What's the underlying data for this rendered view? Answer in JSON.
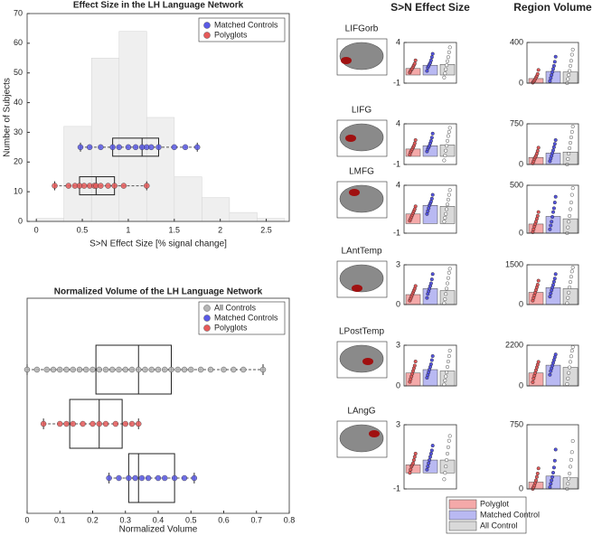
{
  "chart_data": [
    {
      "type": "histogram",
      "title": "Effect Size in the LH Language Network",
      "x_label": "S>N Effect Size [% signal change]",
      "y_label": "Number of Subjects",
      "bins": [
        0,
        0.3,
        0.6,
        0.9,
        1.2,
        1.5,
        1.8,
        2.1,
        2.4,
        2.7
      ],
      "counts": [
        1,
        32,
        55,
        64,
        35,
        15,
        8,
        3,
        1
      ],
      "color": "#efefef",
      "xlim": [
        -0.1,
        2.75
      ],
      "ylim": [
        0,
        70
      ],
      "xticks": [
        0,
        0.5,
        1,
        1.5,
        2,
        2.5
      ],
      "yticks": [
        0,
        10,
        20,
        30,
        40,
        50,
        60,
        70
      ],
      "legend": "upper right",
      "series": [
        {
          "name": "Matched Controls",
          "color": "#5a5ae6",
          "y": 25,
          "box": [
            0.48,
            0.83,
            1.15,
            1.33,
            1.75
          ],
          "points": [
            0.48,
            0.58,
            0.7,
            0.83,
            0.9,
            1.0,
            1.08,
            1.15,
            1.2,
            1.25,
            1.33,
            1.5,
            1.62,
            1.75
          ]
        },
        {
          "name": "Polyglots",
          "color": "#e65a5a",
          "y": 12,
          "box": [
            0.2,
            0.47,
            0.65,
            0.85,
            1.2
          ],
          "points": [
            0.2,
            0.35,
            0.42,
            0.47,
            0.52,
            0.58,
            0.63,
            0.65,
            0.7,
            0.78,
            0.85,
            0.95,
            1.2
          ]
        }
      ]
    },
    {
      "type": "boxplot",
      "title": "Normalized Volume of the LH Language Network",
      "x_label": "Normalized Volume",
      "xlim": [
        0,
        0.8
      ],
      "xticks": [
        0,
        0.1,
        0.2,
        0.3,
        0.4,
        0.5,
        0.6,
        0.7,
        0.8
      ],
      "legend": "upper right",
      "series": [
        {
          "name": "All Controls",
          "color": "#b4b4b4",
          "box": [
            0,
            0.21,
            0.34,
            0.44,
            0.72
          ],
          "points": [
            0,
            0.03,
            0.06,
            0.08,
            0.1,
            0.12,
            0.14,
            0.16,
            0.18,
            0.2,
            0.22,
            0.24,
            0.26,
            0.28,
            0.3,
            0.32,
            0.34,
            0.36,
            0.38,
            0.4,
            0.42,
            0.44,
            0.46,
            0.48,
            0.5,
            0.53,
            0.56,
            0.6,
            0.63,
            0.66,
            0.72
          ]
        },
        {
          "name": "Matched Controls",
          "color": "#5a5ae6",
          "box": [
            0.25,
            0.31,
            0.34,
            0.45,
            0.51
          ],
          "points": [
            0.25,
            0.28,
            0.31,
            0.33,
            0.35,
            0.37,
            0.4,
            0.42,
            0.45,
            0.48,
            0.51
          ]
        },
        {
          "name": "Polyglots",
          "color": "#e65a5a",
          "box": [
            0.05,
            0.13,
            0.22,
            0.29,
            0.34
          ],
          "points": [
            0.05,
            0.1,
            0.12,
            0.14,
            0.17,
            0.2,
            0.22,
            0.24,
            0.27,
            0.3,
            0.32,
            0.34
          ]
        }
      ]
    },
    {
      "type": "bar_grid",
      "column_titles": [
        "S>N Effect Size",
        "Region Volume"
      ],
      "legend": "lower center",
      "series": [
        {
          "name": "Polyglot",
          "color": "#f4a9a9",
          "point_color": "#e05a5a"
        },
        {
          "name": "Matched Control",
          "color": "#b9b9f2",
          "point_color": "#5555e0"
        },
        {
          "name": "All Control",
          "color": "#d9d9d9",
          "point_color": "#ffffff"
        }
      ],
      "panels": [
        {
          "region": "LIFGorb",
          "effect": {
            "ylim": [
              -1,
              4
            ],
            "yticks": [
              -1,
              4
            ],
            "values": [
              0.8,
              1.2,
              1.3
            ],
            "points": [
              [
                0.3,
                0.5,
                0.7,
                0.8,
                1.0,
                1.2,
                1.4,
                1.8
              ],
              [
                0.5,
                0.9,
                1.1,
                1.3,
                1.5,
                1.8,
                2.2,
                2.6
              ],
              [
                -0.3,
                0.2,
                0.7,
                1.2,
                1.7,
                2.2,
                2.8,
                3.4
              ]
            ]
          },
          "volume": {
            "ylim": [
              0,
              400
            ],
            "yticks": [
              0,
              400
            ],
            "values": [
              45,
              115,
              110
            ],
            "points": [
              [
                5,
                15,
                25,
                40,
                55,
                70,
                90,
                130
              ],
              [
                20,
                50,
                80,
                110,
                140,
                170,
                210,
                260
              ],
              [
                0,
                40,
                80,
                120,
                170,
                220,
                280,
                330
              ]
            ]
          }
        },
        {
          "region": "LIFG",
          "effect": {
            "ylim": [
              -1,
              4
            ],
            "yticks": [
              -1,
              4
            ],
            "values": [
              0.9,
              1.3,
              1.4
            ],
            "points": [
              [
                0.2,
                0.5,
                0.7,
                0.9,
                1.1,
                1.3,
                1.6,
                2.0
              ],
              [
                0.6,
                0.9,
                1.1,
                1.3,
                1.6,
                1.9,
                2.3,
                2.8
              ],
              [
                -0.5,
                0.1,
                0.7,
                1.3,
                1.9,
                2.5,
                3.0,
                3.5
              ]
            ]
          },
          "volume": {
            "ylim": [
              0,
              750
            ],
            "yticks": [
              0,
              750
            ],
            "values": [
              130,
              210,
              230
            ],
            "points": [
              [
                20,
                60,
                100,
                130,
                160,
                200,
                250,
                310
              ],
              [
                60,
                110,
                160,
                210,
                260,
                320,
                380,
                450
              ],
              [
                0,
                100,
                200,
                300,
                400,
                500,
                600,
                700
              ]
            ]
          }
        },
        {
          "region": "LMFG",
          "effect": {
            "ylim": [
              -1,
              4
            ],
            "yticks": [
              -1,
              4
            ],
            "values": [
              1.0,
              1.9,
              1.8
            ],
            "points": [
              [
                0.3,
                0.5,
                0.7,
                0.9,
                1.1,
                1.3,
                1.5,
                1.8
              ],
              [
                1.0,
                1.3,
                1.6,
                1.9,
                2.1,
                2.3,
                2.6,
                3.0
              ],
              [
                0.2,
                0.6,
                1.0,
                1.5,
                2.0,
                2.5,
                3.0,
                3.5
              ]
            ]
          },
          "volume": {
            "ylim": [
              0,
              500
            ],
            "yticks": [
              0,
              500
            ],
            "values": [
              95,
              175,
              150
            ],
            "points": [
              [
                10,
                40,
                70,
                95,
                120,
                150,
                180,
                220
              ],
              [
                40,
                80,
                120,
                170,
                220,
                260,
                320,
                380
              ],
              [
                0,
                60,
                120,
                180,
                250,
                320,
                400,
                470
              ]
            ]
          }
        },
        {
          "region": "LAntTemp",
          "effect": {
            "ylim": [
              0,
              3
            ],
            "yticks": [
              0,
              3
            ],
            "values": [
              0.75,
              1.2,
              1.05
            ],
            "points": [
              [
                0.3,
                0.45,
                0.6,
                0.75,
                0.9,
                1.05,
                1.2,
                1.4
              ],
              [
                0.5,
                0.8,
                1.0,
                1.2,
                1.4,
                1.6,
                1.9,
                2.3
              ],
              [
                0.1,
                0.4,
                0.8,
                1.2,
                1.6,
                2.0,
                2.4,
                2.7
              ]
            ]
          },
          "volume": {
            "ylim": [
              0,
              1500
            ],
            "yticks": [
              0,
              1500
            ],
            "values": [
              460,
              640,
              600
            ],
            "points": [
              [
                150,
                250,
                350,
                450,
                550,
                650,
                750,
                900
              ],
              [
                300,
                420,
                540,
                640,
                740,
                860,
                980,
                1150
              ],
              [
                50,
                250,
                450,
                650,
                850,
                1050,
                1250,
                1400
              ]
            ]
          }
        },
        {
          "region": "LPostTemp",
          "effect": {
            "ylim": [
              0,
              3
            ],
            "yticks": [
              0,
              3
            ],
            "values": [
              0.95,
              1.2,
              1.1
            ],
            "points": [
              [
                0.3,
                0.5,
                0.7,
                0.9,
                1.1,
                1.3,
                1.5,
                1.8
              ],
              [
                0.6,
                0.8,
                1.0,
                1.2,
                1.4,
                1.6,
                1.9,
                2.2
              ],
              [
                0.1,
                0.4,
                0.7,
                1.0,
                1.4,
                1.8,
                2.2,
                2.6
              ]
            ]
          },
          "volume": {
            "ylim": [
              0,
              2200
            ],
            "yticks": [
              0,
              2200
            ],
            "values": [
              700,
              1120,
              1000
            ],
            "points": [
              [
                200,
                400,
                550,
                700,
                850,
                1000,
                1150,
                1300
              ],
              [
                600,
                800,
                950,
                1100,
                1250,
                1400,
                1550,
                1700
              ],
              [
                100,
                400,
                700,
                1000,
                1300,
                1600,
                1900,
                2100
              ]
            ]
          }
        },
        {
          "region": "LAngG",
          "effect": {
            "ylim": [
              -1,
              3
            ],
            "yticks": [
              -1,
              3
            ],
            "values": [
              0.5,
              0.8,
              0.8
            ],
            "points": [
              [
                0.0,
                0.2,
                0.4,
                0.5,
                0.6,
                0.8,
                1.0,
                1.2
              ],
              [
                0.2,
                0.4,
                0.6,
                0.8,
                1.0,
                1.2,
                1.4,
                1.7
              ],
              [
                -0.4,
                0.0,
                0.4,
                0.8,
                1.2,
                1.6,
                2.0,
                2.3
              ]
            ]
          },
          "volume": {
            "ylim": [
              0,
              750
            ],
            "yticks": [
              0,
              750
            ],
            "values": [
              80,
              150,
              130
            ],
            "points": [
              [
                0,
                20,
                40,
                70,
                100,
                140,
                180,
                240
              ],
              [
                20,
                60,
                100,
                140,
                190,
                250,
                330,
                460
              ],
              [
                0,
                60,
                120,
                180,
                260,
                340,
                430,
                560
              ]
            ]
          }
        }
      ]
    }
  ]
}
